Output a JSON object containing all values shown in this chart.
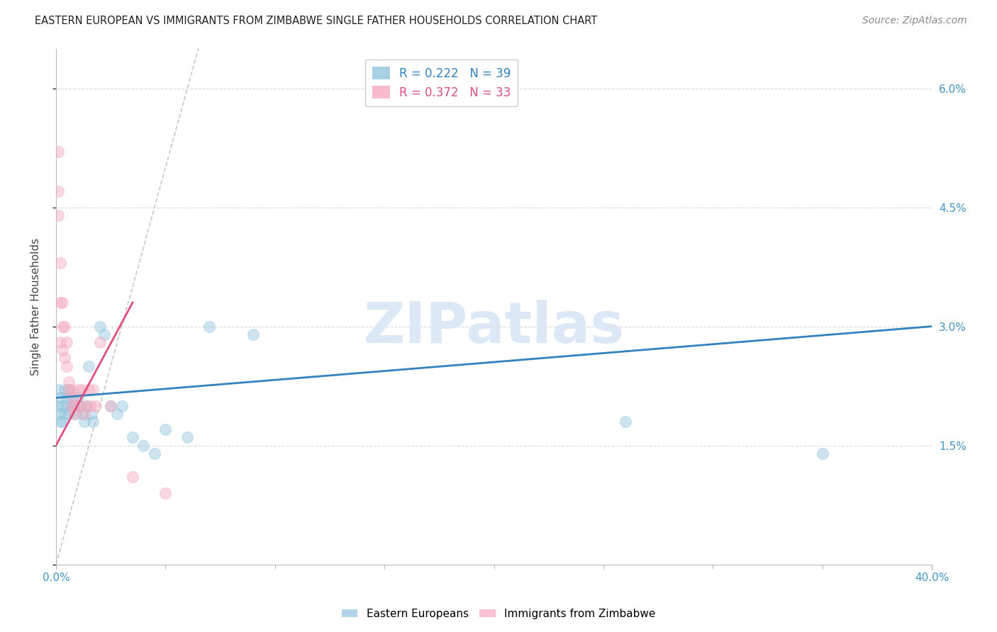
{
  "title": "EASTERN EUROPEAN VS IMMIGRANTS FROM ZIMBABWE SINGLE FATHER HOUSEHOLDS CORRELATION CHART",
  "source": "Source: ZipAtlas.com",
  "ylabel": "Single Father Households",
  "xlim": [
    0.0,
    0.4
  ],
  "ylim": [
    0.0,
    0.065
  ],
  "xticks": [
    0.0,
    0.4
  ],
  "xtick_labels": [
    "0.0%",
    "40.0%"
  ],
  "xminorticks": [
    0.05,
    0.1,
    0.15,
    0.2,
    0.25,
    0.3,
    0.35
  ],
  "yticks": [
    0.0,
    0.015,
    0.03,
    0.045,
    0.06
  ],
  "right_ytick_labels": [
    "",
    "1.5%",
    "3.0%",
    "4.5%",
    "6.0%"
  ],
  "blue_color": "#92c5de",
  "pink_color": "#f4a9be",
  "blue_line_color": "#3182bd",
  "pink_line_color": "#de4f7e",
  "diag_line_color": "#c8c8d0",
  "background_color": "#ffffff",
  "grid_color": "#d8d8e0",
  "title_color": "#222222",
  "axis_label_color": "#444444",
  "tick_label_color": "#4393c3",
  "watermark_text": "ZIPatlas",
  "blue_scatter_x": [
    0.001,
    0.001,
    0.002,
    0.002,
    0.002,
    0.003,
    0.003,
    0.004,
    0.004,
    0.005,
    0.005,
    0.006,
    0.006,
    0.007,
    0.007,
    0.008,
    0.009,
    0.01,
    0.011,
    0.012,
    0.013,
    0.014,
    0.015,
    0.016,
    0.017,
    0.02,
    0.022,
    0.025,
    0.028,
    0.03,
    0.035,
    0.04,
    0.045,
    0.05,
    0.06,
    0.07,
    0.09,
    0.26,
    0.35
  ],
  "blue_scatter_y": [
    0.022,
    0.02,
    0.021,
    0.019,
    0.018,
    0.02,
    0.018,
    0.022,
    0.019,
    0.021,
    0.02,
    0.019,
    0.022,
    0.021,
    0.02,
    0.02,
    0.019,
    0.021,
    0.02,
    0.019,
    0.018,
    0.02,
    0.025,
    0.019,
    0.018,
    0.03,
    0.029,
    0.02,
    0.019,
    0.02,
    0.016,
    0.015,
    0.014,
    0.017,
    0.016,
    0.03,
    0.029,
    0.018,
    0.014
  ],
  "pink_scatter_x": [
    0.001,
    0.001,
    0.001,
    0.002,
    0.002,
    0.002,
    0.003,
    0.003,
    0.003,
    0.004,
    0.004,
    0.005,
    0.005,
    0.006,
    0.006,
    0.007,
    0.007,
    0.008,
    0.008,
    0.009,
    0.01,
    0.011,
    0.012,
    0.013,
    0.014,
    0.015,
    0.016,
    0.017,
    0.018,
    0.02,
    0.025,
    0.035,
    0.05
  ],
  "pink_scatter_y": [
    0.052,
    0.047,
    0.044,
    0.038,
    0.033,
    0.028,
    0.033,
    0.03,
    0.027,
    0.03,
    0.026,
    0.025,
    0.028,
    0.023,
    0.022,
    0.02,
    0.022,
    0.021,
    0.019,
    0.02,
    0.022,
    0.02,
    0.022,
    0.019,
    0.02,
    0.022,
    0.02,
    0.022,
    0.02,
    0.028,
    0.02,
    0.011,
    0.009
  ],
  "blue_trend_x": [
    0.0,
    0.4
  ],
  "blue_trend_y": [
    0.021,
    0.03
  ],
  "pink_trend_x": [
    0.0,
    0.035
  ],
  "pink_trend_y": [
    0.015,
    0.033
  ],
  "diag_line_x": [
    0.0,
    0.065
  ],
  "diag_line_y": [
    0.0,
    0.065
  ],
  "legend_label_blue": "R = 0.222   N = 39",
  "legend_label_pink": "R = 0.372   N = 33",
  "bottom_legend_blue": "Eastern Europeans",
  "bottom_legend_pink": "Immigrants from Zimbabwe",
  "marker_size": 130,
  "marker_alpha": 0.45,
  "figsize": [
    14.06,
    8.92
  ],
  "dpi": 100
}
